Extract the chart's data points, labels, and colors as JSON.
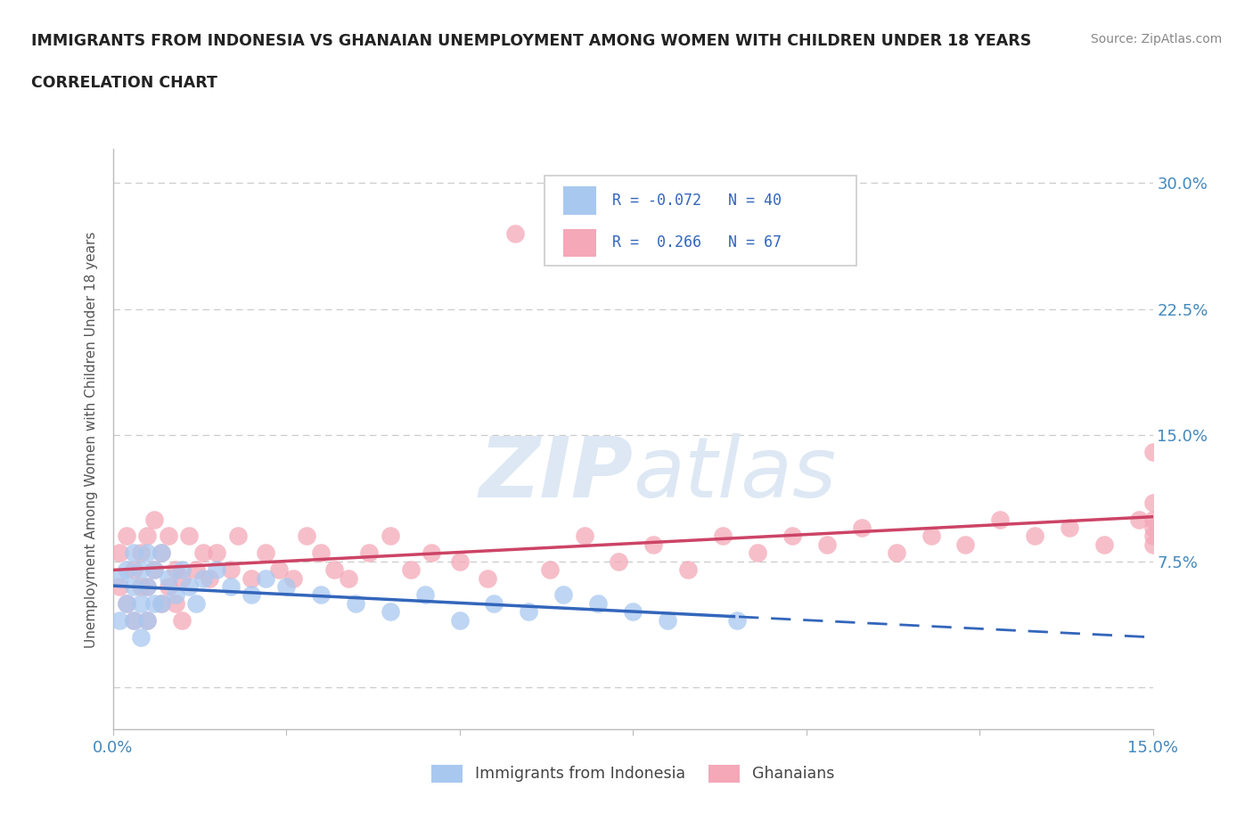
{
  "title": "IMMIGRANTS FROM INDONESIA VS GHANAIAN UNEMPLOYMENT AMONG WOMEN WITH CHILDREN UNDER 18 YEARS",
  "subtitle": "CORRELATION CHART",
  "source": "Source: ZipAtlas.com",
  "ylabel": "Unemployment Among Women with Children Under 18 years",
  "xlim": [
    0.0,
    0.15
  ],
  "ylim": [
    -0.025,
    0.32
  ],
  "grid_color": "#cccccc",
  "background_color": "#ffffff",
  "watermark": "ZIPatlas",
  "indonesia_color": "#a8c8f0",
  "ghana_color": "#f4a8b8",
  "indonesia_line_color": "#3366bb",
  "ghana_line_color": "#cc4466",
  "indonesia_label": "Immigrants from Indonesia",
  "ghana_label": "Ghanaians",
  "indonesia_R": -0.072,
  "indonesia_N": 40,
  "ghana_R": 0.266,
  "ghana_N": 67,
  "indonesia_x": [
    0.001,
    0.001,
    0.002,
    0.002,
    0.003,
    0.003,
    0.003,
    0.004,
    0.004,
    0.004,
    0.005,
    0.005,
    0.005,
    0.006,
    0.006,
    0.007,
    0.007,
    0.008,
    0.009,
    0.01,
    0.011,
    0.012,
    0.013,
    0.015,
    0.017,
    0.02,
    0.022,
    0.025,
    0.03,
    0.035,
    0.04,
    0.045,
    0.05,
    0.055,
    0.06,
    0.065,
    0.07,
    0.075,
    0.08,
    0.09
  ],
  "indonesia_y": [
    0.065,
    0.04,
    0.07,
    0.05,
    0.08,
    0.06,
    0.04,
    0.07,
    0.05,
    0.03,
    0.08,
    0.06,
    0.04,
    0.07,
    0.05,
    0.08,
    0.05,
    0.065,
    0.055,
    0.07,
    0.06,
    0.05,
    0.065,
    0.07,
    0.06,
    0.055,
    0.065,
    0.06,
    0.055,
    0.05,
    0.045,
    0.055,
    0.04,
    0.05,
    0.045,
    0.055,
    0.05,
    0.045,
    0.04,
    0.04
  ],
  "ghana_x": [
    0.001,
    0.001,
    0.002,
    0.002,
    0.003,
    0.003,
    0.004,
    0.004,
    0.005,
    0.005,
    0.005,
    0.006,
    0.006,
    0.007,
    0.007,
    0.008,
    0.008,
    0.009,
    0.009,
    0.01,
    0.01,
    0.011,
    0.012,
    0.013,
    0.014,
    0.015,
    0.017,
    0.018,
    0.02,
    0.022,
    0.024,
    0.026,
    0.028,
    0.03,
    0.032,
    0.034,
    0.037,
    0.04,
    0.043,
    0.046,
    0.05,
    0.054,
    0.058,
    0.063,
    0.068,
    0.073,
    0.078,
    0.083,
    0.088,
    0.093,
    0.098,
    0.103,
    0.108,
    0.113,
    0.118,
    0.123,
    0.128,
    0.133,
    0.138,
    0.143,
    0.148,
    0.15,
    0.15,
    0.15,
    0.15,
    0.15,
    0.15
  ],
  "ghana_y": [
    0.06,
    0.08,
    0.05,
    0.09,
    0.07,
    0.04,
    0.08,
    0.06,
    0.09,
    0.06,
    0.04,
    0.07,
    0.1,
    0.05,
    0.08,
    0.06,
    0.09,
    0.05,
    0.07,
    0.065,
    0.04,
    0.09,
    0.07,
    0.08,
    0.065,
    0.08,
    0.07,
    0.09,
    0.065,
    0.08,
    0.07,
    0.065,
    0.09,
    0.08,
    0.07,
    0.065,
    0.08,
    0.09,
    0.07,
    0.08,
    0.075,
    0.065,
    0.27,
    0.07,
    0.09,
    0.075,
    0.085,
    0.07,
    0.09,
    0.08,
    0.09,
    0.085,
    0.095,
    0.08,
    0.09,
    0.085,
    0.1,
    0.09,
    0.095,
    0.085,
    0.1,
    0.09,
    0.1,
    0.085,
    0.11,
    0.095,
    0.14
  ]
}
